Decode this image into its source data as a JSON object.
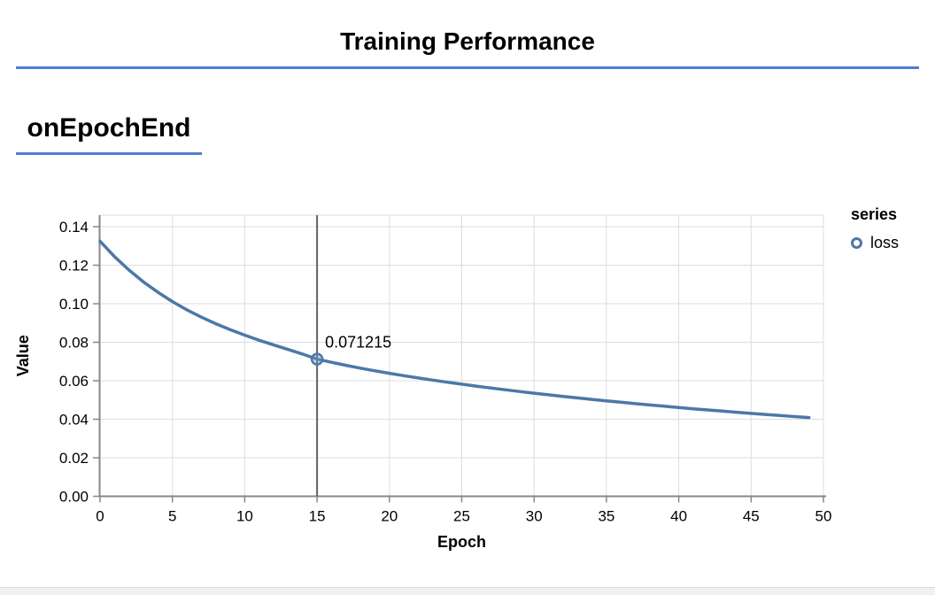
{
  "header": {
    "title": "Training Performance"
  },
  "section": {
    "heading": "onEpochEnd"
  },
  "colors": {
    "accent_blue": "#4a7fd2",
    "series_line": "#4c78a8",
    "grid": "#dddddd",
    "axis": "#888888",
    "ruler": "#636363",
    "marker_fill": "rgba(120,150,190,0.4)",
    "bottom_strip_bg": "#f0f1f1",
    "bottom_strip_border": "#d8dadb"
  },
  "chart_data": {
    "type": "line",
    "title": "",
    "xlabel": "Epoch",
    "ylabel": "Value",
    "xlim": [
      0,
      50
    ],
    "ylim": [
      0,
      0.146
    ],
    "grid": true,
    "xticks": [
      0,
      5,
      10,
      15,
      20,
      25,
      30,
      35,
      40,
      45,
      50
    ],
    "xtick_labels": [
      "0",
      "5",
      "10",
      "15",
      "20",
      "25",
      "30",
      "35",
      "40",
      "45",
      "50"
    ],
    "yticks": [
      0,
      0.02,
      0.04,
      0.06,
      0.08,
      0.1,
      0.12,
      0.14
    ],
    "ytick_labels": [
      "0.00",
      "0.02",
      "0.04",
      "0.06",
      "0.08",
      "0.10",
      "0.12",
      "0.14"
    ],
    "legend": {
      "title": "series",
      "position": "right",
      "entries": [
        {
          "label": "loss",
          "marker": "open-circle",
          "color": "#4c78a8"
        }
      ]
    },
    "series": [
      {
        "name": "loss",
        "x": [
          0,
          1,
          2,
          3,
          4,
          5,
          6,
          7,
          8,
          9,
          10,
          11,
          12,
          13,
          14,
          15,
          16,
          17,
          18,
          19,
          20,
          21,
          22,
          23,
          24,
          25,
          26,
          27,
          28,
          29,
          30,
          31,
          32,
          33,
          34,
          35,
          36,
          37,
          38,
          39,
          40,
          41,
          42,
          43,
          44,
          45,
          46,
          47,
          48,
          49
        ],
        "values": [
          0.1325,
          0.1245,
          0.117498,
          0.111349,
          0.105926,
          0.101123,
          0.096851,
          0.093031,
          0.089602,
          0.086507,
          0.0837,
          0.081041,
          0.078596,
          0.076237,
          0.07384,
          0.071215,
          0.069572,
          0.068009,
          0.066552,
          0.065178,
          0.063872,
          0.062632,
          0.061453,
          0.060325,
          0.059243,
          0.058203,
          0.057202,
          0.056238,
          0.055306,
          0.054407,
          0.053535,
          0.05269,
          0.051871,
          0.051075,
          0.050302,
          0.049551,
          0.048821,
          0.048109,
          0.047417,
          0.046743,
          0.046087,
          0.045447,
          0.044824,
          0.044216,
          0.043623,
          0.043046,
          0.042483,
          0.041934,
          0.041398,
          0.040876
        ]
      }
    ],
    "highlight": {
      "x": 15,
      "y": 0.071215,
      "label": "0.071215",
      "ruler": true
    }
  }
}
